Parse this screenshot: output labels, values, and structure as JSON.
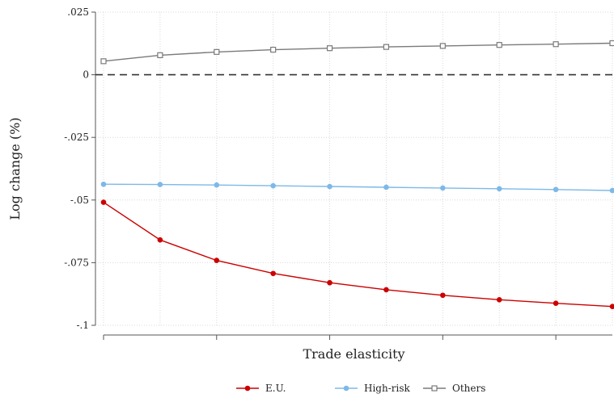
{
  "chart_data": {
    "type": "line",
    "xlabel": "Trade elasticity",
    "ylabel": "Log change (%)",
    "x": [
      1,
      2,
      3,
      4,
      5,
      6,
      7,
      8,
      9,
      10
    ],
    "xlim": [
      1,
      10
    ],
    "ylim": [
      -0.1,
      0.025
    ],
    "y_ticks": [
      {
        "value": 0.025,
        "label": ".025"
      },
      {
        "value": 0,
        "label": "0"
      },
      {
        "value": -0.025,
        "label": "-.025"
      },
      {
        "value": -0.05,
        "label": "-.05"
      },
      {
        "value": -0.075,
        "label": "-.075"
      },
      {
        "value": -0.1,
        "label": "-.1"
      }
    ],
    "x_ticks": [
      1,
      3,
      5,
      7,
      9
    ],
    "x_minor": [
      2,
      4,
      6,
      8,
      10
    ],
    "grid": true,
    "reference_line": {
      "y": 0,
      "style": "dashed",
      "color": "#333333"
    },
    "legend_position": "bottom",
    "series": [
      {
        "name": "E.U.",
        "color": "#cc0000",
        "marker": "circle",
        "values": [
          -0.0509,
          -0.0659,
          -0.0741,
          -0.0793,
          -0.083,
          -0.0858,
          -0.088,
          -0.0898,
          -0.0912,
          -0.0925
        ]
      },
      {
        "name": "High-risk",
        "color": "#7db9e8",
        "marker": "circle",
        "values": [
          -0.0437,
          -0.0438,
          -0.044,
          -0.0443,
          -0.0446,
          -0.0449,
          -0.0452,
          -0.0455,
          -0.0458,
          -0.0462
        ]
      },
      {
        "name": "Others",
        "color": "#7a7a7a",
        "marker": "square",
        "values": [
          0.0054,
          0.0078,
          0.0091,
          0.01,
          0.0106,
          0.0111,
          0.0115,
          0.0119,
          0.0122,
          0.0126
        ]
      }
    ]
  }
}
